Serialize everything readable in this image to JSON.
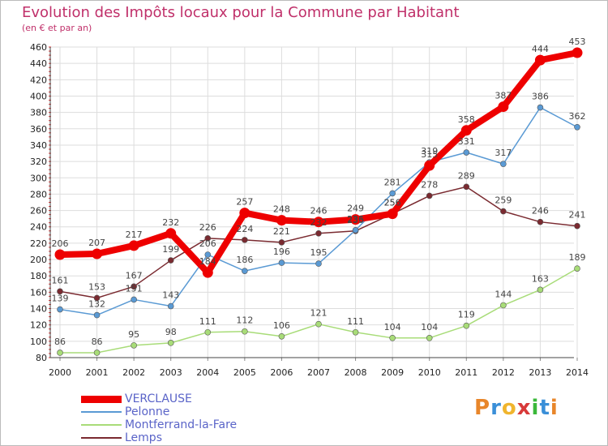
{
  "title": "Evolution des Impôts locaux pour la Commune par Habitant",
  "subtitle": "(en € et par an)",
  "logo": {
    "text": "Proxiti",
    "colors": [
      "#e8862a",
      "#3a8fd8",
      "#f0b52e",
      "#d83a3a",
      "#3ab83a",
      "#3a8fd8",
      "#e8862a"
    ]
  },
  "chart_data": {
    "type": "line",
    "x": [
      2000,
      2001,
      2002,
      2003,
      2004,
      2005,
      2006,
      2007,
      2008,
      2009,
      2010,
      2011,
      2012,
      2013,
      2014
    ],
    "ylim": [
      80,
      460
    ],
    "y_ticks": [
      80,
      100,
      120,
      140,
      160,
      180,
      200,
      220,
      240,
      260,
      280,
      300,
      320,
      340,
      360,
      380,
      400,
      420,
      440,
      460
    ],
    "grid": true,
    "legend_position": "bottom-left",
    "series": [
      {
        "name": "VERCLAUSE",
        "color": "#ee0000",
        "values": [
          206,
          207,
          217,
          232,
          184,
          257,
          248,
          246,
          249,
          256,
          315,
          358,
          387,
          444,
          453
        ]
      },
      {
        "name": "Pelonne",
        "color": "#5a9ad4",
        "values": [
          139,
          132,
          151,
          143,
          206,
          186,
          196,
          195,
          236,
          281,
          319,
          331,
          317,
          386,
          362
        ]
      },
      {
        "name": "Montferrand-la-Fare",
        "color": "#a8dc78",
        "values": [
          86,
          86,
          95,
          98,
          111,
          112,
          106,
          121,
          111,
          104,
          104,
          119,
          144,
          163,
          189
        ]
      },
      {
        "name": "Lemps",
        "color": "#7a2a30",
        "values": [
          161,
          153,
          167,
          199,
          226,
          224,
          221,
          232,
          235,
          256,
          278,
          289,
          259,
          246,
          241
        ]
      }
    ]
  }
}
